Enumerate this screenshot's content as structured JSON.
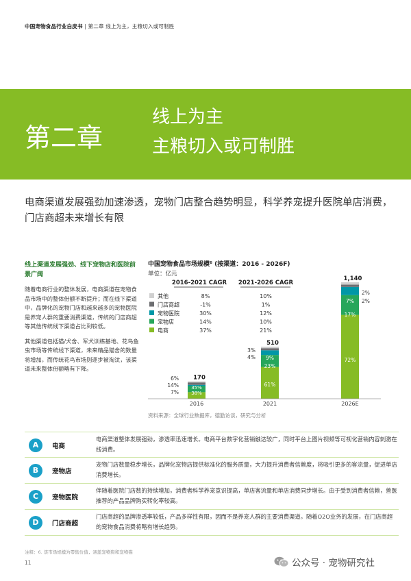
{
  "header": {
    "report": "中国宠物食品行业白皮书",
    "separator": " | ",
    "section": "第二章 线上为主，主粮切入或可制胜"
  },
  "chapter": {
    "number": "第二章",
    "title_line1": "线上为主",
    "title_line2": "主粮切入或可制胜"
  },
  "subtitle": "电商渠道发展强劲加速渗透，宠物门店整合趋势明显，科学养宠提升医院单店消费，门店商超未来增长有限",
  "left": {
    "heading": "线上渠道发展强劲、线下宠物店和医院前景广阔",
    "p1": "随着电商行业的整体发展，电商渠道在宠物食品市场中的整体份额不断提升；而在线下渠道中，品牌化的宠物门店和越来越多的宠物医院是养宠人群的重要消费渠道，传统的门店商超等其他传统线下渠道占比到较低。",
    "p2": "其他渠道包括猫/犬舍、军犬训练基地、花鸟鱼虫市场等传统线下渠道，未来精品猫舍的数量将增加，而传统花鸟市场则逐步被淘汰，该渠道未来整体份额略有下降。"
  },
  "chart_data": {
    "type": "bar",
    "title": "中国宠物食品市场规模⁶ (按渠道：2016 - 2026F)",
    "unit": "单位：亿元",
    "categories": [
      "2016",
      "2021",
      "2026E"
    ],
    "totals": [
      170,
      510,
      1140
    ],
    "total_labels": [
      "170",
      "510",
      "1,140"
    ],
    "series": [
      {
        "name": "电商",
        "values": [
          38,
          61,
          72
        ],
        "color": "#86bc25"
      },
      {
        "name": "宠物店",
        "values": [
          35,
          23,
          17
        ],
        "color": "#26a65b"
      },
      {
        "name": "宠物医院",
        "values": [
          7,
          9,
          7
        ],
        "color": "#0097a7"
      },
      {
        "name": "门店商超",
        "values": [
          14,
          4,
          2
        ],
        "color": "#6d6e71"
      },
      {
        "name": "其他",
        "values": [
          6,
          3,
          2
        ],
        "color": "#d0d0d0"
      }
    ],
    "inside_labels": [
      [
        "38%",
        "35%"
      ],
      [
        "61%",
        "23%",
        "9%"
      ],
      [
        "72%",
        "17%",
        "7%"
      ]
    ],
    "outside_labels": [
      [
        "6%",
        "14%",
        "7%"
      ],
      [
        "3%",
        "4%"
      ],
      [
        "2%",
        "2%"
      ]
    ],
    "cagr_headers": [
      "2016-2021 CAGR",
      "2021-2026 CAGR"
    ],
    "cagr": [
      {
        "name": "其他",
        "c1": "8%",
        "c2": "10%"
      },
      {
        "name": "门店商超",
        "c1": "-1%",
        "c2": "1%"
      },
      {
        "name": "宠物医院",
        "c1": "30%",
        "c2": "12%"
      },
      {
        "name": "宠物店",
        "c1": "14%",
        "c2": "10%"
      },
      {
        "name": "电商",
        "c1": "37%",
        "c2": "21%"
      }
    ]
  },
  "source": "资料来源：全球行业数据库，德勤访谈，研究与分析",
  "channels": [
    {
      "letter": "A",
      "name": "电商",
      "desc": "电商渠道整体发展强劲，渗透率迅速增长。电商平台数字化营销触达较广，同时平台上图片视频等可视化营销内容刺激在线消费。"
    },
    {
      "letter": "B",
      "name": "宠物店",
      "desc": "宠物门店数量稳步增长，品牌化宠物店提供标准化的服务质量，大力提升消费者信赖度，将吸引更多的客流量，促进单店消费增长。"
    },
    {
      "letter": "C",
      "name": "宠物医院",
      "desc": "伴随着医院门店数的持续增加，消费者科学养宠意识提高，单店客流量和单店消费同步增长。由于受到消费者信赖，兽医推荐的产品品牌购买转化率较高。"
    },
    {
      "letter": "D",
      "name": "门店商超",
      "desc": "门店商超的品牌渗透率较低，产品多样性有限，因而不是养宠人群的主要消费渠道。随着O2O业务的发展，在门店商超的宠物食品消费将略有增长趋势。"
    }
  ],
  "footnote": "注释：6. 该市场规模为零售价值，涵盖宠物狗和宠物猫",
  "page_number": "11",
  "watermark": "公众号 · 宠物研究社",
  "colors": {
    "accent": "#86bc25",
    "badge": "#1aa0c8"
  }
}
